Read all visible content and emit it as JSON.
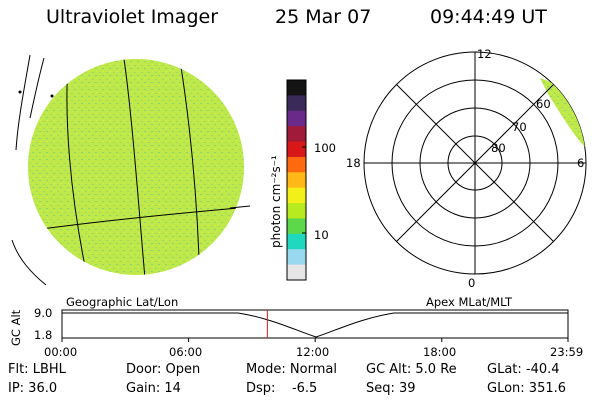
{
  "header": {
    "title": "Ultraviolet Imager",
    "date": "25 Mar 07",
    "time": "09:44:49 UT"
  },
  "colorbar": {
    "unit_label": "photon cm⁻²s⁻¹",
    "ticks": [
      "100",
      "10"
    ],
    "colors": [
      "#141414",
      "#3a2a5a",
      "#6a2a8a",
      "#a01a3a",
      "#d81818",
      "#ff6a10",
      "#ffb818",
      "#f2f018",
      "#b8ea20",
      "#5cd84a",
      "#20d8c0",
      "#9ad8f0",
      "#e6e6e6"
    ]
  },
  "polar_plot": {
    "mlt_labels": {
      "top": "12",
      "left": "18",
      "right": "6",
      "bottom": "0"
    },
    "lat_labels": [
      "60",
      "70",
      "80"
    ]
  },
  "timeline": {
    "left_label": "Geographic Lat/Lon",
    "right_label": "Apex MLat/MLT",
    "axis_title": "GC Alt",
    "y_ticks": [
      "9.0",
      "1.8"
    ],
    "x_ticks": [
      "00:00",
      "06:00",
      "12:00",
      "18:00",
      "23:59"
    ],
    "marker_time": "09:44"
  },
  "info": {
    "flt": "Flt: LBHL",
    "ip": "IP: 36.0",
    "door": "Door: Open",
    "gain": "Gain: 14",
    "mode": "Mode: Normal",
    "dsp": "Dsp:    -6.5",
    "gcalt": "GC Alt: 5.0 Re",
    "seq": "Seq: 39",
    "glat": "GLat: -40.4",
    "glon": "GLon: 351.6"
  },
  "colors": {
    "disk_fill": "#bfe84a",
    "disk_speckle": "#8ad66e",
    "timeline_marker": "#d02020"
  }
}
